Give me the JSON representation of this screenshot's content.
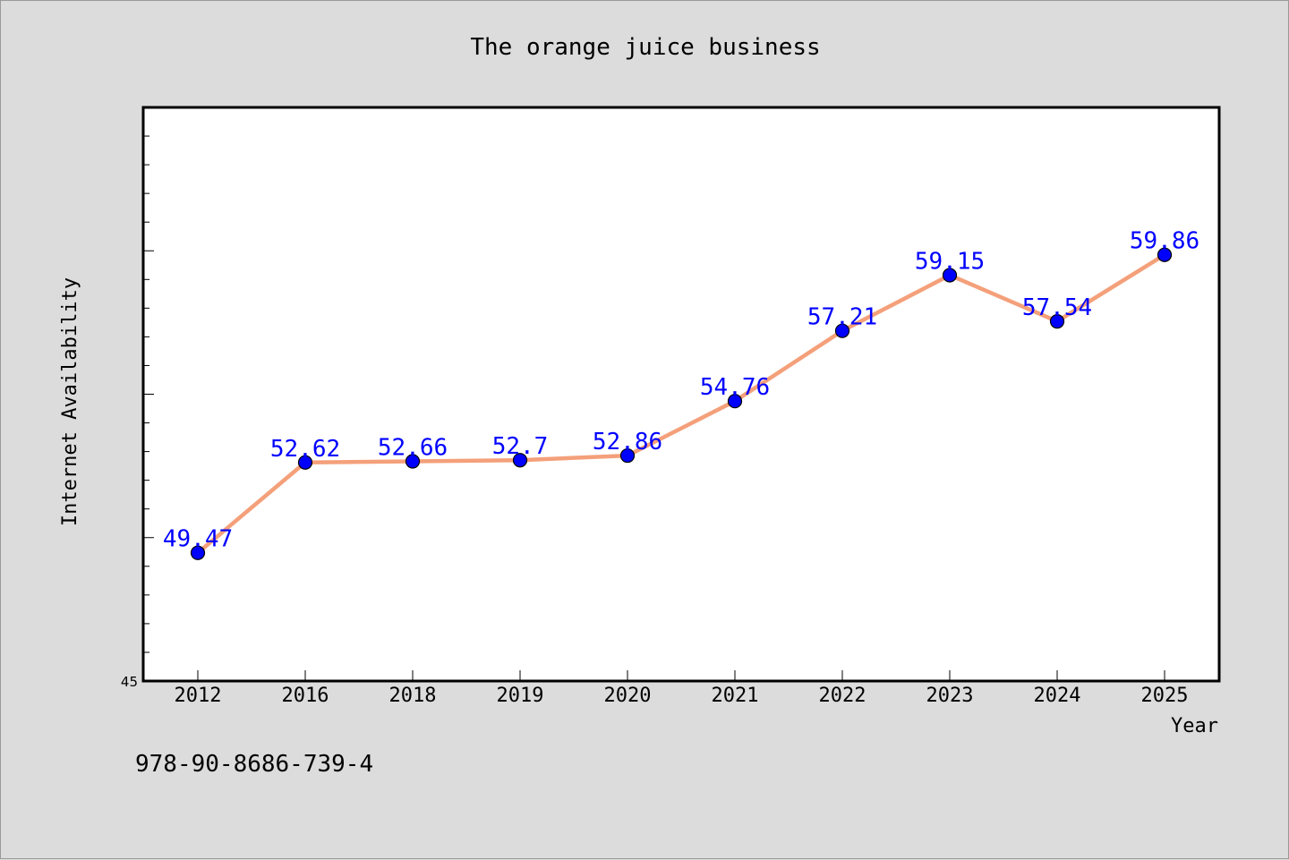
{
  "chart_data": {
    "type": "line",
    "title": "The orange juice business",
    "xlabel": "Year",
    "ylabel": "Internet Availability",
    "categories": [
      "2012",
      "2016",
      "2018",
      "2019",
      "2020",
      "2021",
      "2022",
      "2023",
      "2024",
      "2025"
    ],
    "series": [
      {
        "values": [
          49.47,
          52.62,
          52.66,
          52.7,
          52.86,
          54.76,
          57.21,
          59.15,
          57.54,
          59.86
        ],
        "labels": [
          "49.47",
          "52.62",
          "52.66",
          "52.7",
          "52.86",
          "54.76",
          "57.21",
          "59.15",
          "57.54",
          "59.86"
        ]
      }
    ],
    "ylim": [
      45,
      65
    ],
    "yticks_labeled": [
      "45"
    ],
    "grid": false,
    "legend": "none",
    "colors": {
      "line": "#f4a07a",
      "marker": "#0000ff",
      "data_label": "#0000ff",
      "plot_bg": "#ffffff",
      "page_bg": "#dcdcdc"
    }
  },
  "footer": {
    "isbn": "978-90-8686-739-4"
  }
}
